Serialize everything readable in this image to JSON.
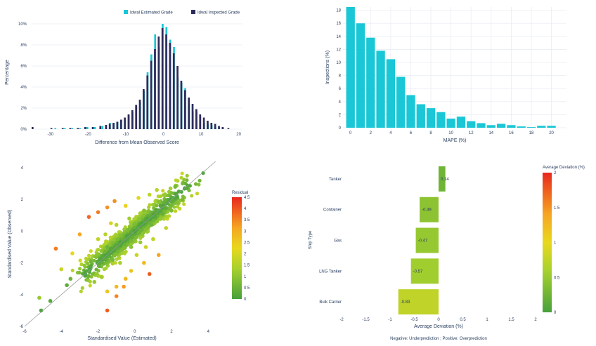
{
  "chart_data": [
    {
      "type": "bar",
      "mode": "overlay histogram",
      "xlabel": "Difference from Mean Observed Score",
      "ylabel": "Percentage",
      "xlim": [
        -35,
        21
      ],
      "ylim": [
        0,
        10.8
      ],
      "xticks": [
        -30,
        -20,
        -10,
        0,
        10,
        20
      ],
      "yticks": [
        0,
        2,
        4,
        6,
        8,
        10
      ],
      "ytick_labels": [
        "0%",
        "2%",
        "4%",
        "6%",
        "8%",
        "10%"
      ],
      "legend_position": "top-center",
      "series": [
        {
          "name": "Idwal Estimated Grade",
          "color": "#19c7d6",
          "x": [
            -28.5,
            -26,
            -24,
            -22,
            -20,
            -18,
            -16,
            -15,
            -14,
            -13,
            -12,
            -11,
            -10,
            -9,
            -8,
            -7,
            -6,
            -5,
            -4,
            -3,
            -2,
            -1,
            0,
            1,
            2,
            3,
            4,
            5,
            6,
            7,
            8,
            9,
            10,
            11,
            12,
            13,
            14,
            16
          ],
          "values": [
            0.1,
            0.1,
            0.1,
            0.1,
            0.2,
            0.2,
            0.3,
            0.4,
            0.6,
            0.6,
            0.7,
            0.9,
            0.9,
            1.3,
            1.6,
            2.2,
            2.6,
            3.6,
            5.4,
            7.1,
            9.0,
            7.8,
            10.0,
            9.7,
            8.5,
            7.8,
            4.9,
            4.4,
            3.9,
            2.3,
            1.7,
            1.7,
            1.3,
            0.6,
            0.5,
            0.4,
            0.2,
            0.1
          ]
        },
        {
          "name": "Idwal Inspected Grade",
          "color": "#2d2c5b",
          "x": [
            -35,
            -30,
            -27,
            -25,
            -23,
            -21,
            -19,
            -17,
            -15.5,
            -14.5,
            -13.5,
            -12.5,
            -11.5,
            -10.5,
            -9.5,
            -8.5,
            -7.5,
            -6.5,
            -5.5,
            -4.5,
            -3.5,
            -2.5,
            -1.5,
            -0.5,
            0.5,
            1.5,
            2.5,
            3.5,
            4.5,
            5.5,
            6.5,
            7.5,
            8.5,
            9.5,
            10.5,
            11.5,
            12.5,
            13.5,
            14.5,
            15.5,
            17
          ],
          "values": [
            0.2,
            0.1,
            0.1,
            0.1,
            0.1,
            0.2,
            0.2,
            0.3,
            0.4,
            0.5,
            0.6,
            0.7,
            0.9,
            1.1,
            1.4,
            1.8,
            2.3,
            2.8,
            3.8,
            5.1,
            6.5,
            7.6,
            8.8,
            9.6,
            9.0,
            8.2,
            7.2,
            6.0,
            4.6,
            3.7,
            3.0,
            2.4,
            1.9,
            1.4,
            1.1,
            0.8,
            0.6,
            0.5,
            0.3,
            0.2,
            0.1
          ]
        }
      ]
    },
    {
      "type": "bar",
      "xlabel": "MAPE (%)",
      "ylabel": "Inspections (%)",
      "xlim": [
        -0.75,
        21.5
      ],
      "ylim": [
        0,
        18.5
      ],
      "xticks": [
        0,
        2,
        4,
        6,
        8,
        10,
        12,
        14,
        16,
        18,
        20
      ],
      "yticks": [
        0,
        2,
        4,
        6,
        8,
        10,
        12,
        14,
        16,
        18
      ],
      "color": "#19c7d6",
      "categories": [
        0,
        1,
        2,
        3,
        4,
        5,
        6,
        7,
        8,
        9,
        10,
        11,
        12,
        13,
        14,
        15,
        16,
        17,
        18,
        19,
        20,
        21
      ],
      "values": [
        18.5,
        16.0,
        13.8,
        11.8,
        10.5,
        7.8,
        5.0,
        3.6,
        3.0,
        2.4,
        1.4,
        1.7,
        1.0,
        0.7,
        0.4,
        0.6,
        0.4,
        0.2,
        0.1,
        0.3,
        0.3,
        0.0
      ]
    },
    {
      "type": "scatter",
      "xlabel": "Standardised Value (Estimated)",
      "ylabel": "Standardised Value (Observed)",
      "xlim": [
        -6,
        4.6
      ],
      "ylim": [
        -6,
        4.4
      ],
      "xticks": [
        -6,
        -4,
        -2,
        0,
        2,
        4
      ],
      "yticks": [
        -6,
        -4,
        -2,
        0,
        2,
        4
      ],
      "colorbar_title": "Residual",
      "colorbar_range": [
        0,
        4.5
      ],
      "colorbar_ticks": [
        0,
        0.5,
        1,
        1.5,
        2,
        2.5,
        3,
        3.5,
        4,
        4.5
      ],
      "reference_line": "y = x",
      "points": [
        [
          -5.2,
          -4.2
        ],
        [
          -5.1,
          -5.0
        ],
        [
          -4.6,
          -4.4
        ],
        [
          -3.7,
          -3.4
        ],
        [
          -3.5,
          -3.0
        ],
        [
          -4.3,
          -1.1
        ],
        [
          -4.0,
          -2.4
        ],
        [
          -3.4,
          -1.4
        ],
        [
          -3.0,
          -0.2
        ],
        [
          -2.5,
          0.9
        ],
        [
          -2.0,
          1.2
        ],
        [
          -1.5,
          1.5
        ],
        [
          -1.1,
          1.9
        ],
        [
          -0.5,
          1.6
        ],
        [
          0.2,
          2.1
        ],
        [
          0.8,
          2.3
        ],
        [
          1.2,
          2.6
        ],
        [
          2.2,
          2.8
        ],
        [
          2.4,
          2.5
        ],
        [
          -2.7,
          -2.7
        ],
        [
          -2.4,
          -1.9
        ],
        [
          -2.2,
          -3.2
        ],
        [
          -1.8,
          -2.9
        ],
        [
          -1.5,
          -3.8
        ],
        [
          -1.0,
          -3.5
        ],
        [
          -0.5,
          -3.0
        ],
        [
          -0.2,
          -2.5
        ],
        [
          0.5,
          -2.0
        ],
        [
          0.8,
          -2.7
        ],
        [
          1.3,
          -1.5
        ],
        [
          -1.5,
          -5.0
        ],
        [
          -1.0,
          -4.1
        ],
        [
          -0.6,
          -3.5
        ],
        [
          -2.0,
          -0.5
        ],
        [
          -1.5,
          -1.0
        ],
        [
          -1.2,
          -1.8
        ],
        [
          -1.6,
          -0.2
        ],
        [
          -1.3,
          0.5
        ],
        [
          -0.8,
          -2.0
        ],
        [
          0.1,
          -1.5
        ],
        [
          0.6,
          -1.0
        ],
        [
          1.0,
          -0.5
        ],
        [
          1.7,
          0.2
        ],
        [
          1.5,
          1.1
        ],
        [
          2.0,
          1.3
        ],
        [
          2.6,
          2.0
        ],
        [
          -1.0,
          0.4
        ],
        [
          -0.3,
          0.8
        ],
        [
          0.5,
          1.3
        ],
        [
          0.9,
          0.4
        ],
        [
          0.3,
          -0.7
        ],
        [
          -0.2,
          -1.0
        ],
        [
          0.0,
          0.0
        ],
        [
          0.4,
          0.5
        ],
        [
          -0.4,
          -0.3
        ],
        [
          1.1,
          0.9
        ],
        [
          1.4,
          1.6
        ],
        [
          -0.8,
          -0.7
        ],
        [
          -1.3,
          -1.1
        ],
        [
          -1.9,
          -1.8
        ],
        [
          -2.4,
          -2.2
        ],
        [
          2.3,
          2.2
        ]
      ]
    },
    {
      "type": "bar",
      "orientation": "horizontal",
      "xlabel": "Average Deviation (%)",
      "ylabel": "Ship Type",
      "footnote": "Negative: Underprediction ; Positive: Overprediction",
      "xlim": [
        -2,
        2
      ],
      "xticks": [
        -2,
        -1.5,
        -1,
        -0.5,
        0,
        0.5,
        1,
        1.5,
        2
      ],
      "categories": [
        "Tanker",
        "Container",
        "Gas",
        "LNG Tanker",
        "Bulk Carrier"
      ],
      "values": [
        0.14,
        -0.39,
        -0.47,
        -0.57,
        -0.83
      ],
      "data_labels": [
        "0.14",
        "-0.39",
        "-0.47",
        "-0.57",
        "-0.83"
      ],
      "colorbar_title": "Average Deviation (%)",
      "colorbar_ticks": [
        0,
        0.5,
        1,
        1.5,
        2
      ]
    }
  ]
}
